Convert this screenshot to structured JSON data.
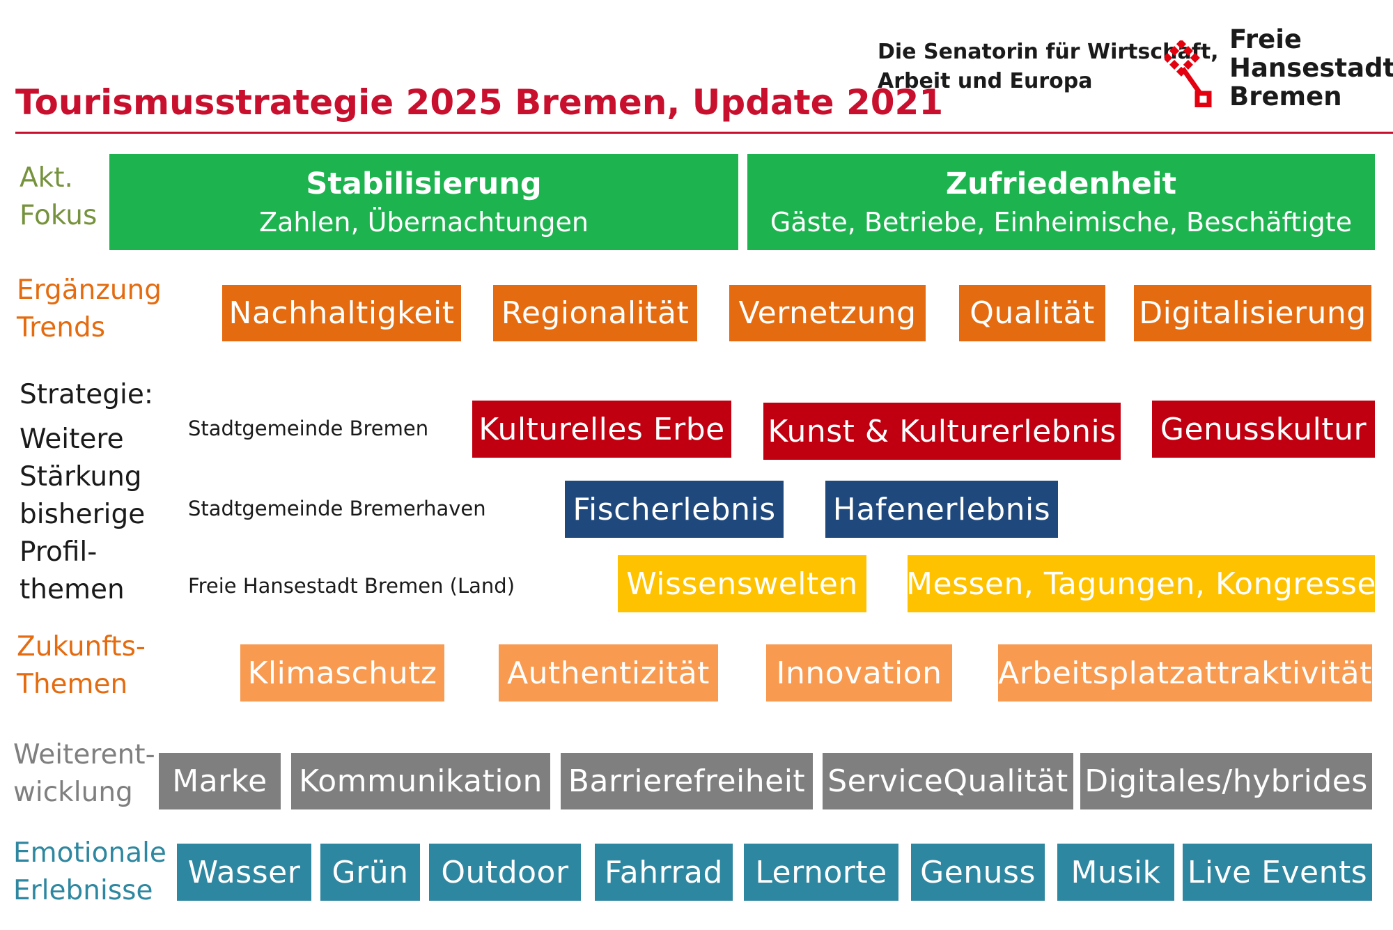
{
  "header": {
    "title": "Tourismusstrategie 2025 Bremen, Update 2021",
    "senator_line1": "Die Senatorin für Wirtschaft,",
    "senator_line2": "Arbeit und Europa",
    "city_line1": "Freie",
    "city_line2": "Hansestadt",
    "city_line3": "Bremen",
    "emblem_icon": "bremen-key-icon",
    "accent_color": "#c8102e"
  },
  "rows": {
    "focus": {
      "label_line1": "Akt.",
      "label_line2": "Fokus",
      "label_color": "#76923c",
      "box_color": "#1db34f",
      "items": [
        {
          "title": "Stabilisierung",
          "subtitle": "Zahlen, Übernachtungen"
        },
        {
          "title": "Zufriedenheit",
          "subtitle": "Gäste, Betriebe, Einheimische, Beschäftigte"
        }
      ]
    },
    "trends": {
      "label_line1": "Ergänzung",
      "label_line2": "Trends",
      "label_color": "#e46b0f",
      "box_color": "#e46b0f",
      "items": [
        "Nachhaltigkeit",
        "Regionalität",
        "Vernetzung",
        "Qualität",
        "Digitalisierung"
      ]
    },
    "strategy": {
      "label_lines": [
        "Strategie:",
        "Weitere",
        "Stärkung",
        "bisherige",
        "Profil-",
        "themen"
      ],
      "label_color": "#1a1a1a",
      "groups": [
        {
          "name": "Stadtgemeinde Bremen",
          "color": "#c00010",
          "items": [
            "Kulturelles Erbe",
            "Kunst & Kulturerlebnis",
            "Genusskultur"
          ]
        },
        {
          "name": "Stadtgemeinde Bremerhaven",
          "color": "#1f497d",
          "items": [
            "Fischerlebnis",
            "Hafenerlebnis"
          ]
        },
        {
          "name": "Freie Hansestadt Bremen (Land)",
          "color": "#fec200",
          "items": [
            "Wissenswelten",
            "Messen, Tagungen, Kongresse"
          ]
        }
      ]
    },
    "future": {
      "label_line1": "Zukunfts-",
      "label_line2": "Themen",
      "label_color": "#e46b0f",
      "box_color": "#f89a50",
      "items": [
        "Klimaschutz",
        "Authentizität",
        "Innovation",
        "Arbeitsplatzattraktivität"
      ]
    },
    "development": {
      "label_line1": "Weiterent-",
      "label_line2": "wicklung",
      "label_color": "#7f7f7f",
      "box_color": "#7f7f7f",
      "items": [
        "Marke",
        "Kommunikation",
        "Barrierefreiheit",
        "ServiceQualität",
        "Digitales/hybrides"
      ]
    },
    "emotional": {
      "label_line1": "Emotionale",
      "label_line2": "Erlebnisse",
      "label_color": "#2e87a0",
      "box_color": "#2e87a0",
      "items": [
        "Wasser",
        "Grün",
        "Outdoor",
        "Fahrrad",
        "Lernorte",
        "Genuss",
        "Musik",
        "Live Events"
      ]
    }
  }
}
